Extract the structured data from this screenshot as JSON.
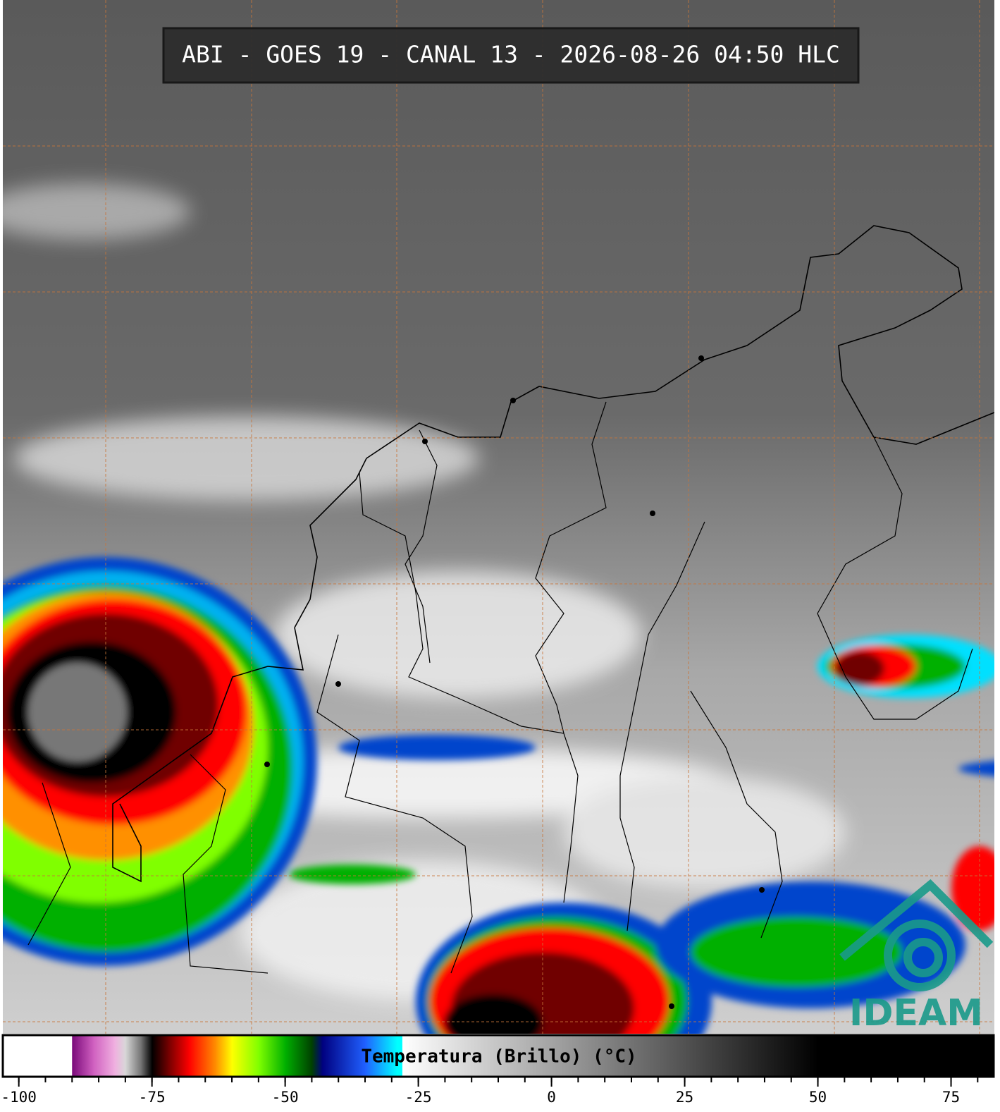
{
  "title": "ABI - GOES 19 - CANAL 13 - 2026-08-26 04:50 HLC",
  "colorbar": {
    "label": "Temperatura (Brillo) (°C)",
    "range": [
      -103,
      83
    ],
    "ticks": [
      -100,
      -75,
      -50,
      -25,
      0,
      25,
      50,
      75
    ],
    "minor_tick_step": 5,
    "colormap": [
      {
        "value": -103,
        "color": "#ffffff"
      },
      {
        "value": -90,
        "color": "#7a0a7a"
      },
      {
        "value": -86,
        "color": "#d060c0"
      },
      {
        "value": -82,
        "color": "#f0b0e0"
      },
      {
        "value": -80,
        "color": "#d8d8d8"
      },
      {
        "value": -77,
        "color": "#707070"
      },
      {
        "value": -75,
        "color": "#000000"
      },
      {
        "value": -72,
        "color": "#700000"
      },
      {
        "value": -68,
        "color": "#ff0000"
      },
      {
        "value": -63,
        "color": "#ff9000"
      },
      {
        "value": -60,
        "color": "#ffff00"
      },
      {
        "value": -55,
        "color": "#80ff00"
      },
      {
        "value": -50,
        "color": "#00b000"
      },
      {
        "value": -45,
        "color": "#004000"
      },
      {
        "value": -43,
        "color": "#000080"
      },
      {
        "value": -35,
        "color": "#2060ff"
      },
      {
        "value": -29,
        "color": "#00ffff"
      },
      {
        "value": -28,
        "color": "#ffffff"
      },
      {
        "value": 50,
        "color": "#000000"
      },
      {
        "value": 83,
        "color": "#000000"
      }
    ]
  },
  "logo": "IDEAM"
}
